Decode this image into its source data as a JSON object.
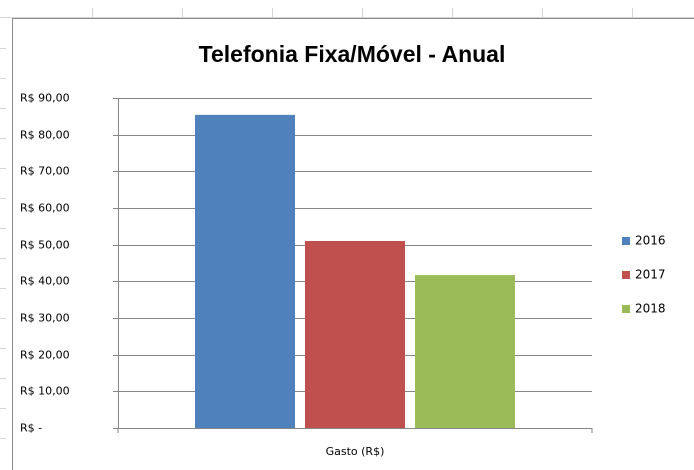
{
  "chart_data": {
    "type": "bar",
    "title": "Telefonia Fixa/Móvel - Anual",
    "categories": [
      "Gasto (R$)"
    ],
    "series": [
      {
        "name": "2016",
        "color": "#4f81bd",
        "values": [
          85.4
        ]
      },
      {
        "name": "2017",
        "color": "#c0504d",
        "values": [
          51.0
        ]
      },
      {
        "name": "2018",
        "color": "#9bbb59",
        "values": [
          41.7
        ]
      }
    ],
    "ylim": [
      0,
      90
    ],
    "yticks": [
      {
        "value": 0,
        "label": "R$ -"
      },
      {
        "value": 10,
        "label": "R$ 10,00"
      },
      {
        "value": 20,
        "label": "R$ 20,00"
      },
      {
        "value": 30,
        "label": "R$ 30,00"
      },
      {
        "value": 40,
        "label": "R$ 40,00"
      },
      {
        "value": 50,
        "label": "R$ 50,00"
      },
      {
        "value": 60,
        "label": "R$ 60,00"
      },
      {
        "value": 70,
        "label": "R$ 70,00"
      },
      {
        "value": 80,
        "label": "R$ 80,00"
      },
      {
        "value": 90,
        "label": "R$ 90,00"
      }
    ],
    "grid": true,
    "legend": "right"
  }
}
